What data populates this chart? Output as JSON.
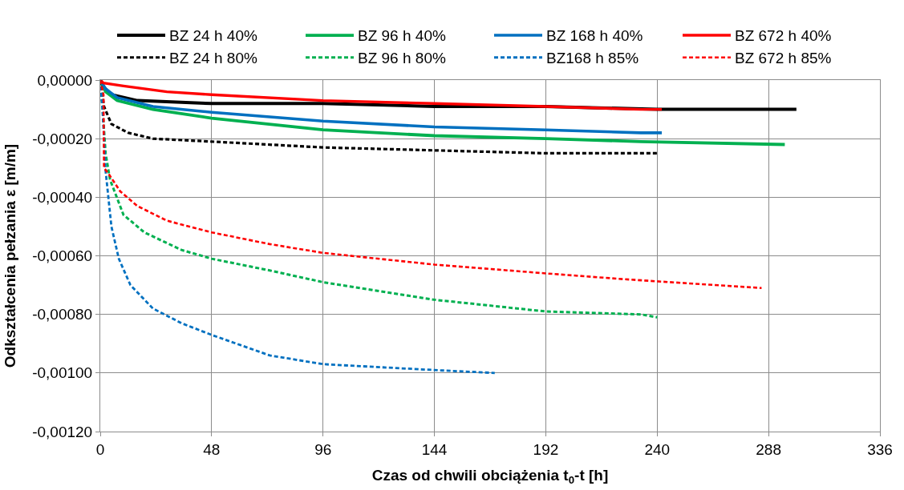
{
  "chart_data": {
    "type": "line",
    "xlabel": "Czas od chwili obciążenia t$_{0}$-t [h]",
    "ylabel": "Odkształcenia pełzania ε [m/m]",
    "xlim": [
      0,
      336
    ],
    "xticks": [
      0,
      48,
      96,
      144,
      192,
      240,
      288,
      336
    ],
    "ylim": [
      -0.0012,
      0
    ],
    "yticks": [
      {
        "value": 0,
        "label": "0,00000"
      },
      {
        "value": -0.0002,
        "label": "-0,00020"
      },
      {
        "value": -0.0004,
        "label": "-0,00040"
      },
      {
        "value": -0.0006,
        "label": "-0,00060"
      },
      {
        "value": -0.0008,
        "label": "-0,00080"
      },
      {
        "value": -0.001,
        "label": "-0,00100"
      },
      {
        "value": -0.0012,
        "label": "-0,00120"
      }
    ],
    "grid": true,
    "legend": "top",
    "marker": "none",
    "series": [
      {
        "name": "BZ 24 h 40%",
        "color": "#000000",
        "line_style": "solid",
        "x": [
          0,
          1,
          4.8,
          16,
          48,
          96,
          144,
          192,
          240,
          300
        ],
        "values": [
          0,
          -2e-05,
          -5e-05,
          -7e-05,
          -8e-05,
          -8e-05,
          -9e-05,
          -9e-05,
          -0.0001,
          -0.0001
        ]
      },
      {
        "name": "BZ 96 h 40%",
        "color": "#00b050",
        "line_style": "solid",
        "x": [
          0,
          2.3,
          7.3,
          22.7,
          48,
          96,
          144,
          192,
          233,
          295
        ],
        "values": [
          0,
          -4e-05,
          -7e-05,
          -0.0001,
          -0.00013,
          -0.00017,
          -0.00019,
          -0.0002,
          -0.00021,
          -0.00022
        ]
      },
      {
        "name": "BZ 168 h 40%",
        "color": "#0070c0",
        "line_style": "solid",
        "x": [
          0,
          2.3,
          7.3,
          22.7,
          48,
          96,
          144,
          192,
          233,
          242
        ],
        "values": [
          0,
          -3e-05,
          -6e-05,
          -9e-05,
          -0.00011,
          -0.00014,
          -0.00016,
          -0.00017,
          -0.00018,
          -0.00018
        ]
      },
      {
        "name": "BZ 672 h 40%",
        "color": "#ff0000",
        "line_style": "solid",
        "x": [
          0,
          1.4,
          10,
          28.7,
          48,
          96,
          144,
          192,
          233,
          242
        ],
        "values": [
          0,
          -1e-05,
          -2e-05,
          -4e-05,
          -5e-05,
          -7e-05,
          -8e-05,
          -9e-05,
          -0.0001,
          -0.0001
        ]
      },
      {
        "name": "BZ 24 h 80%",
        "color": "#000000",
        "line_style": "dashed",
        "x": [
          0,
          1.6,
          4.8,
          12,
          22.7,
          48,
          96,
          144,
          192,
          240
        ],
        "values": [
          0,
          -9e-05,
          -0.00015,
          -0.00018,
          -0.0002,
          -0.00021,
          -0.00023,
          -0.00024,
          -0.00025,
          -0.00025
        ]
      },
      {
        "name": "BZ 96 h 80%",
        "color": "#00b050",
        "line_style": "dashed",
        "x": [
          0,
          1,
          2.3,
          4.2,
          10,
          19,
          35,
          48,
          73,
          96,
          144,
          192,
          233,
          240
        ],
        "values": [
          0,
          -0.0001,
          -0.00025,
          -0.00034,
          -0.00046,
          -0.00052,
          -0.00058,
          -0.00061,
          -0.00065,
          -0.00069,
          -0.00075,
          -0.00079,
          -0.0008,
          -0.00081
        ]
      },
      {
        "name": "BZ168 h 85%",
        "color": "#0070c0",
        "line_style": "dashed",
        "x": [
          0,
          1,
          2.3,
          4.8,
          8,
          13,
          22.7,
          35,
          48,
          73,
          96,
          144,
          170
        ],
        "values": [
          0,
          -0.0001,
          -0.00031,
          -0.0005,
          -0.00061,
          -0.0007,
          -0.00078,
          -0.00083,
          -0.00087,
          -0.00094,
          -0.00097,
          -0.00099,
          -0.001
        ]
      },
      {
        "name": "BZ 672 h 85%",
        "color": "#ff0000",
        "line_style": "dashed",
        "x": [
          0,
          1.4,
          1.6,
          3.6,
          8.6,
          16,
          28.7,
          48,
          73,
          96,
          144,
          192,
          226,
          285
        ],
        "values": [
          0,
          -5e-05,
          -0.0003,
          -0.00032,
          -0.00038,
          -0.00043,
          -0.00048,
          -0.00052,
          -0.00056,
          -0.00059,
          -0.00063,
          -0.00066,
          -0.00068,
          -0.00071
        ]
      }
    ]
  }
}
